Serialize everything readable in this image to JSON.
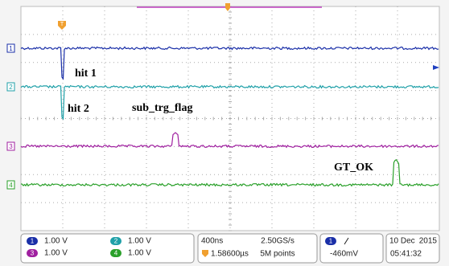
{
  "screen": {
    "trigger_marker": "T",
    "channel_markers": [
      "1",
      "2",
      "3",
      "4"
    ],
    "annotations": [
      "hit 1",
      "hit 2",
      "sub_trg_flag",
      "GT_OK"
    ]
  },
  "status_bar": {
    "channels": [
      {
        "number": "1",
        "scale": "1.00 V"
      },
      {
        "number": "2",
        "scale": "1.00 V"
      },
      {
        "number": "3",
        "scale": "1.00 V"
      },
      {
        "number": "4",
        "scale": "1.00 V"
      }
    ],
    "timebase": "400ns",
    "sample_rate": "2.50GS/s",
    "record_length": "5M points",
    "trigger_position": "1.58600µs",
    "trigger_channel": "1",
    "trigger_level": "-460mV",
    "date_day": "10 Dec",
    "date_year": "2015",
    "time": "05:41:32"
  }
}
